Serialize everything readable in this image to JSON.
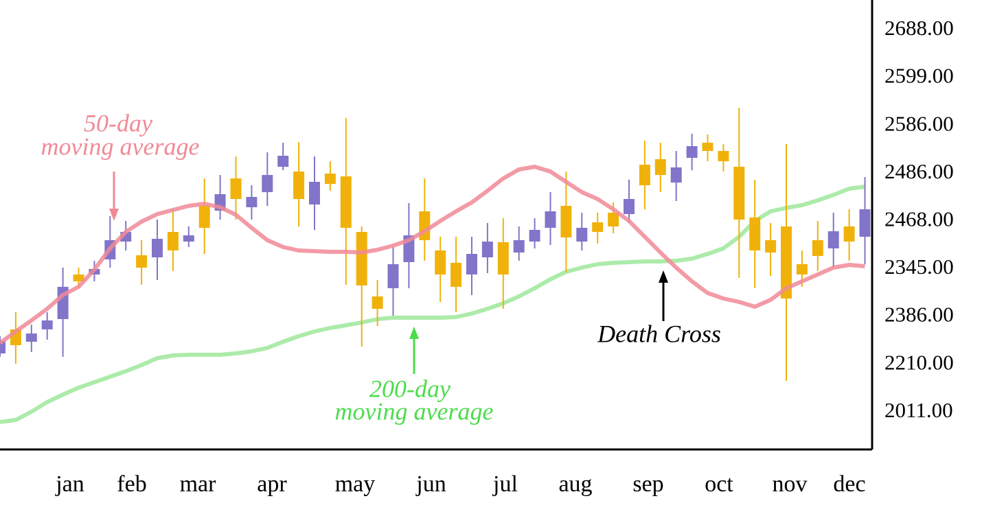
{
  "chart_data": {
    "type": "candlestick",
    "ylim": [
      0,
      655
    ],
    "y_labels": [
      "2688.00",
      "2599.00",
      "2586.00",
      "2486.00",
      "2468.00",
      "2345.00",
      "2386.00",
      "2210.00",
      "2011.00"
    ],
    "x_labels": [
      "jan",
      "feb",
      "mar",
      "apr",
      "may",
      "jun",
      "jul",
      "aug",
      "sep",
      "oct",
      "nov",
      "dec"
    ],
    "up_color": "#8274c9",
    "down_color": "#f0b20a",
    "open": [
      140,
      175,
      157,
      175,
      190,
      255,
      255,
      277,
      303,
      283,
      280,
      317,
      303,
      355,
      348,
      395,
      353,
      375,
      412,
      405,
      357,
      402,
      398,
      317,
      223,
      235,
      273,
      347,
      290,
      272,
      255,
      280,
      302,
      287,
      303,
      323,
      355,
      303,
      331,
      345,
      343,
      415,
      423,
      389,
      425,
      447,
      435,
      412,
      338,
      305,
      325,
      270,
      305,
      293,
      325,
      310
    ],
    "high": [
      165,
      200,
      182,
      200,
      265,
      265,
      275,
      340,
      333,
      305,
      335,
      350,
      325,
      395,
      400,
      427,
      385,
      433,
      447,
      448,
      427,
      420,
      483,
      325,
      247,
      295,
      359,
      395,
      310,
      310,
      310,
      330,
      337,
      325,
      337,
      375,
      405,
      345,
      345,
      360,
      393,
      450,
      447,
      435,
      460,
      459,
      445,
      498,
      393,
      330,
      445,
      290,
      333,
      345,
      350,
      397
    ],
    "low": [
      135,
      125,
      142,
      160,
      135,
      235,
      245,
      265,
      290,
      240,
      247,
      260,
      295,
      285,
      335,
      335,
      335,
      355,
      407,
      325,
      320,
      377,
      240,
      150,
      180,
      195,
      235,
      275,
      215,
      200,
      225,
      257,
      205,
      275,
      293,
      298,
      258,
      290,
      300,
      315,
      330,
      350,
      375,
      362,
      407,
      420,
      405,
      250,
      235,
      253,
      100,
      237,
      260,
      265,
      275,
      270
    ],
    "close": [
      158,
      152,
      169,
      188,
      237,
      245,
      263,
      305,
      317,
      265,
      307,
      290,
      312,
      323,
      372,
      365,
      368,
      400,
      428,
      365,
      390,
      387,
      323,
      239,
      205,
      270,
      312,
      305,
      255,
      237,
      285,
      303,
      255,
      305,
      320,
      347,
      309,
      323,
      317,
      325,
      365,
      385,
      400,
      411,
      442,
      435,
      420,
      335,
      290,
      287,
      220,
      255,
      282,
      318,
      303,
      350
    ],
    "moving_averages": [
      {
        "color": "#f08a96",
        "values": [
          155,
          172,
          188,
          205,
          225,
          237,
          262,
          293,
          317,
          332,
          343,
          349,
          355,
          358,
          353,
          342,
          323,
          305,
          295,
          290,
          289,
          288,
          288,
          287,
          291,
          297,
          305,
          318,
          333,
          347,
          360,
          377,
          395,
          408,
          412,
          405,
          390,
          375,
          365,
          350,
          333,
          310,
          287,
          265,
          245,
          228,
          220,
          215,
          208,
          218,
          235,
          245,
          255,
          265,
          269,
          267
        ]
      },
      {
        "color": "#9ee89a",
        "values": [
          40,
          43,
          55,
          69,
          80,
          90,
          98,
          106,
          114,
          123,
          133,
          137,
          138,
          138,
          138,
          140,
          143,
          148,
          157,
          165,
          172,
          177,
          181,
          185,
          190,
          192,
          192,
          192,
          192,
          193,
          198,
          205,
          213,
          223,
          235,
          248,
          259,
          265,
          270,
          272,
          273,
          274,
          274,
          275,
          278,
          285,
          293,
          310,
          333,
          347,
          352,
          356,
          363,
          371,
          380,
          383
        ]
      }
    ],
    "annotations": [
      {
        "lines": [
          "50-day",
          "moving average"
        ],
        "color": "#f08a96"
      },
      {
        "lines": [
          "200-day",
          "moving average"
        ],
        "color": "#4ddc4d"
      },
      {
        "lines": [
          "Death Cross"
        ],
        "color": "#000000"
      }
    ]
  }
}
